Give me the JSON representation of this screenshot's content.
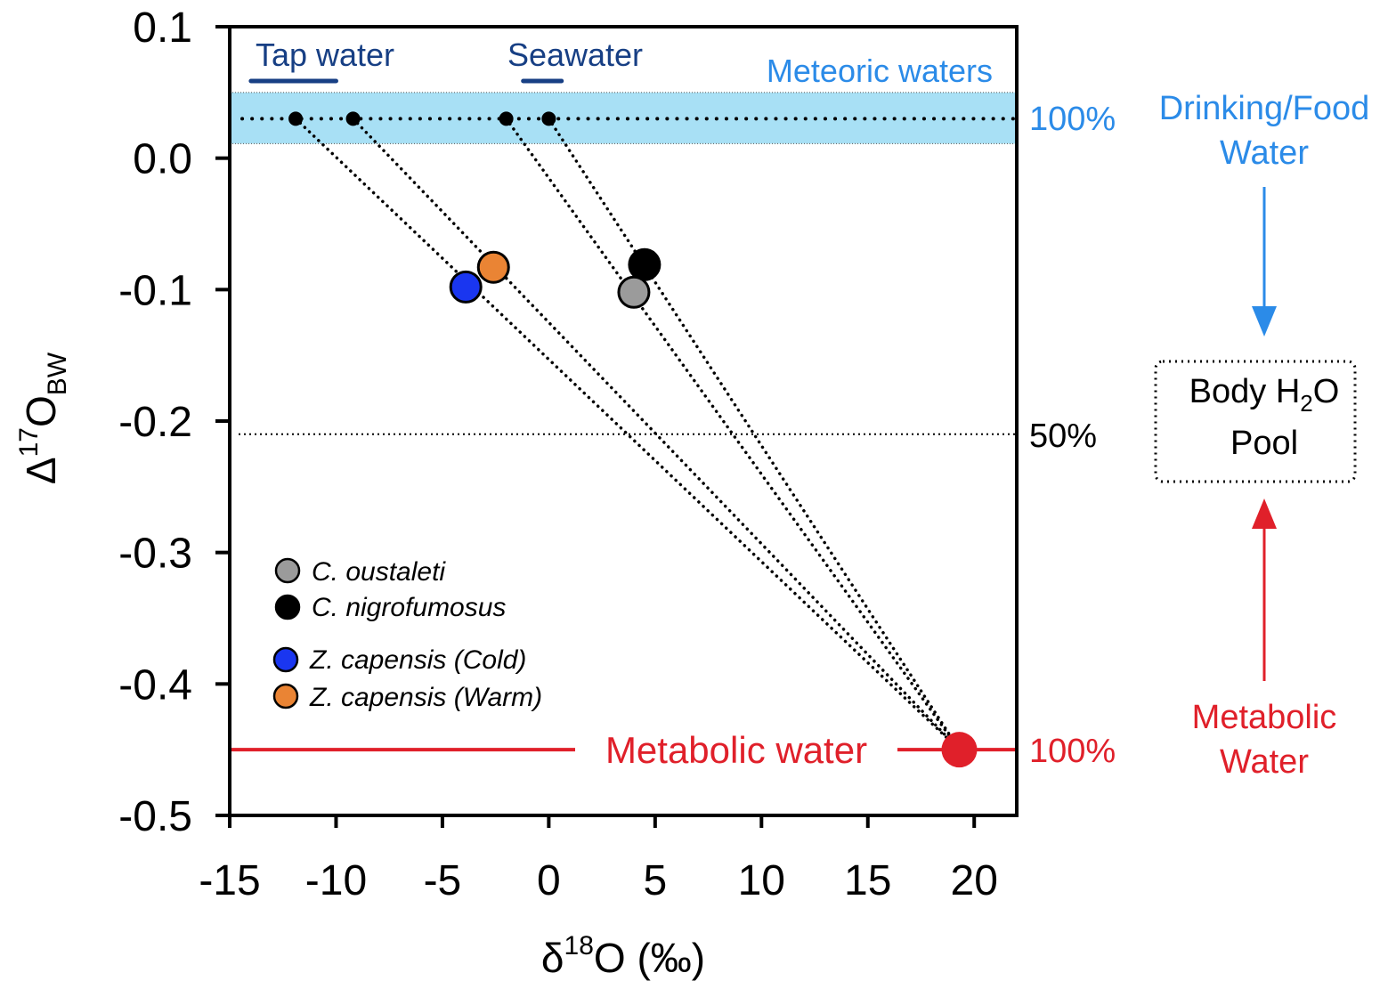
{
  "chart_data": {
    "type": "scatter",
    "xlabel": {
      "main": "δ",
      "sup": "18",
      "rest": "O (‰)"
    },
    "ylabel": {
      "main": "Δ",
      "sup": "17",
      "mid": "O",
      "sub": "BW"
    },
    "xlim": [
      -15,
      22
    ],
    "ylim": [
      -0.5,
      0.1
    ],
    "xticks": [
      -15,
      -10,
      -5,
      0,
      5,
      10,
      15,
      20
    ],
    "xtick_labels": [
      "-15",
      "-10",
      "-5",
      "0",
      "5",
      "10",
      "15",
      "20"
    ],
    "yticks": [
      0.1,
      0.0,
      -0.1,
      -0.2,
      -0.3,
      -0.4,
      -0.5
    ],
    "ytick_labels": [
      "0.1",
      "0.0",
      "-0.1",
      "-0.2",
      "-0.3",
      "-0.4",
      "-0.5"
    ],
    "meteoric_band": {
      "label": "Meteoric waters",
      "y_range": [
        0.011,
        0.05
      ],
      "center": 0.03,
      "color": "#a8e0f5"
    },
    "fifty_line": {
      "y": -0.21,
      "label": "50%"
    },
    "metabolic_line": {
      "y": -0.45,
      "label": "Metabolic water",
      "percent_label": "100%",
      "color": "#e0202a"
    },
    "meteoric_percent_label": "100%",
    "source_waters": [
      {
        "x": -11.9,
        "y": 0.03
      },
      {
        "x": -9.2,
        "y": 0.03
      },
      {
        "x": -2.0,
        "y": 0.03
      },
      {
        "x": 0.0,
        "y": 0.03
      }
    ],
    "source_groups": [
      {
        "label": "Tap water",
        "x_range": [
          -14,
          -10
        ]
      },
      {
        "label": "Seawater",
        "x_range": [
          -1.2,
          0.6
        ]
      }
    ],
    "metabolic_point": {
      "x": 19.3,
      "y": -0.45,
      "color": "#e0202a"
    },
    "series": [
      {
        "name": "C. oustaleti",
        "x": 4.0,
        "y": -0.102,
        "color": "#9b9b9b",
        "source": 2
      },
      {
        "name": "C. nigrofumosus",
        "x": 4.5,
        "y": -0.081,
        "color": "#000000",
        "source": 3
      },
      {
        "name": "Z. capensis (Cold)",
        "x": -3.9,
        "y": -0.098,
        "color": "#1a36f0",
        "source": 0
      },
      {
        "name": "Z. capensis (Warm)",
        "x": -2.6,
        "y": -0.083,
        "color": "#ea8434",
        "source": 1
      }
    ],
    "legend_placement": "bottom-left",
    "side_diagram": {
      "top_label_1": "Drinking/Food",
      "top_label_2": "Water",
      "box_label_1_main": "Body H",
      "box_label_1_sub": "2",
      "box_label_1_end": "O",
      "box_label_2": "Pool",
      "bottom_label_1": "Metabolic",
      "bottom_label_2": "Water",
      "top_color": "#2b8be8",
      "bottom_color": "#e0202a"
    }
  }
}
